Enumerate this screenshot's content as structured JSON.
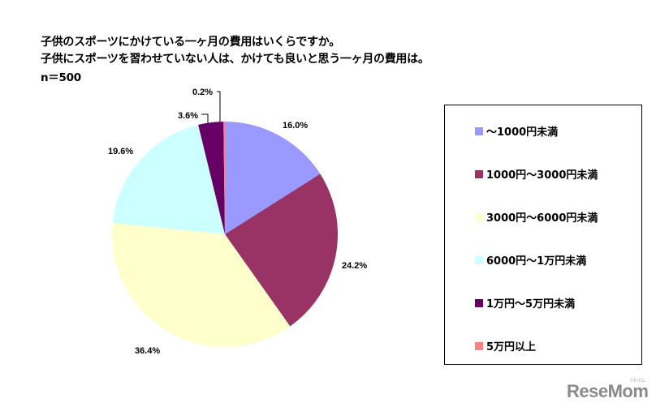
{
  "title": {
    "line1": "子供のスポーツにかけている一ヶ月の費用はいくらですか。",
    "line2": "子供にスポーツを習わせていない人は、かけても良いと思う一ヶ月の費用は。",
    "sample": "n＝500"
  },
  "chart_data": {
    "type": "pie",
    "title": "子供のスポーツにかけている一ヶ月の費用はいくらですか。子供にスポーツを習わせていない人は、かけても良いと思う一ヶ月の費用は。",
    "subtitle": "n＝500",
    "start_angle": "12 o'clock, clockwise",
    "legend_position": "right",
    "categories": [
      "～1000円未満",
      "1000円～3000円未満",
      "3000円～6000円未満",
      "6000円～1万円未満",
      "1万円～5万円未満",
      "5万円以上"
    ],
    "values": [
      16.0,
      24.2,
      36.4,
      19.6,
      3.6,
      0.2
    ],
    "labels": [
      "16.0%",
      "24.2%",
      "36.4%",
      "19.6%",
      "3.6%",
      "0.2%"
    ],
    "colors": [
      "#9999ff",
      "#993366",
      "#ffffcc",
      "#ccffff",
      "#660066",
      "#ff8080"
    ]
  },
  "legend": {
    "items": [
      {
        "label": "～1000円未満",
        "color": "#9999ff"
      },
      {
        "label": "1000円～3000円未満",
        "color": "#993366"
      },
      {
        "label": "3000円～6000円未満",
        "color": "#ffffcc"
      },
      {
        "label": "6000円～1万円未満",
        "color": "#ccffff"
      },
      {
        "label": "1万円～5万円未満",
        "color": "#660066"
      },
      {
        "label": "5万円以上",
        "color": "#ff8080"
      }
    ]
  },
  "watermark": {
    "text": "ReseMom",
    "sub": "リセマム"
  }
}
